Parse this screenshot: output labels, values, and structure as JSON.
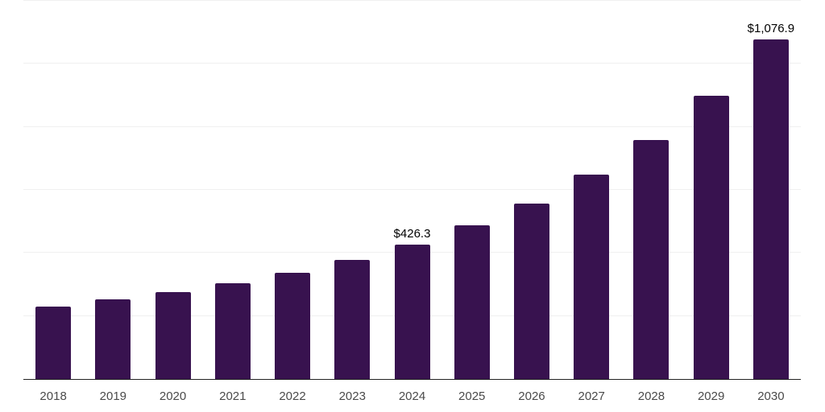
{
  "chart_data": {
    "type": "bar",
    "title": "",
    "xlabel": "",
    "ylabel": "",
    "categories": [
      "2018",
      "2019",
      "2020",
      "2021",
      "2022",
      "2023",
      "2024",
      "2025",
      "2026",
      "2027",
      "2028",
      "2029",
      "2030"
    ],
    "values": [
      229.8,
      251.9,
      276.5,
      303.1,
      336.3,
      377.9,
      426.3,
      487.7,
      557.4,
      647.8,
      759.1,
      898.0,
      1076.9
    ],
    "value_labels": [
      "",
      "",
      "",
      "",
      "",
      "",
      "$426.3",
      "",
      "",
      "",
      "",
      "",
      "$1,076.9"
    ],
    "ylim": [
      0,
      1200
    ],
    "gridline_step": 200,
    "grid": "on",
    "legend": "none",
    "colors": {
      "bar": "#38124F",
      "axis_line": "#222222",
      "gridline": "#f0f0f0",
      "tick_label": "#4a4a4a",
      "value_label": "#000000",
      "background": "#ffffff"
    }
  }
}
